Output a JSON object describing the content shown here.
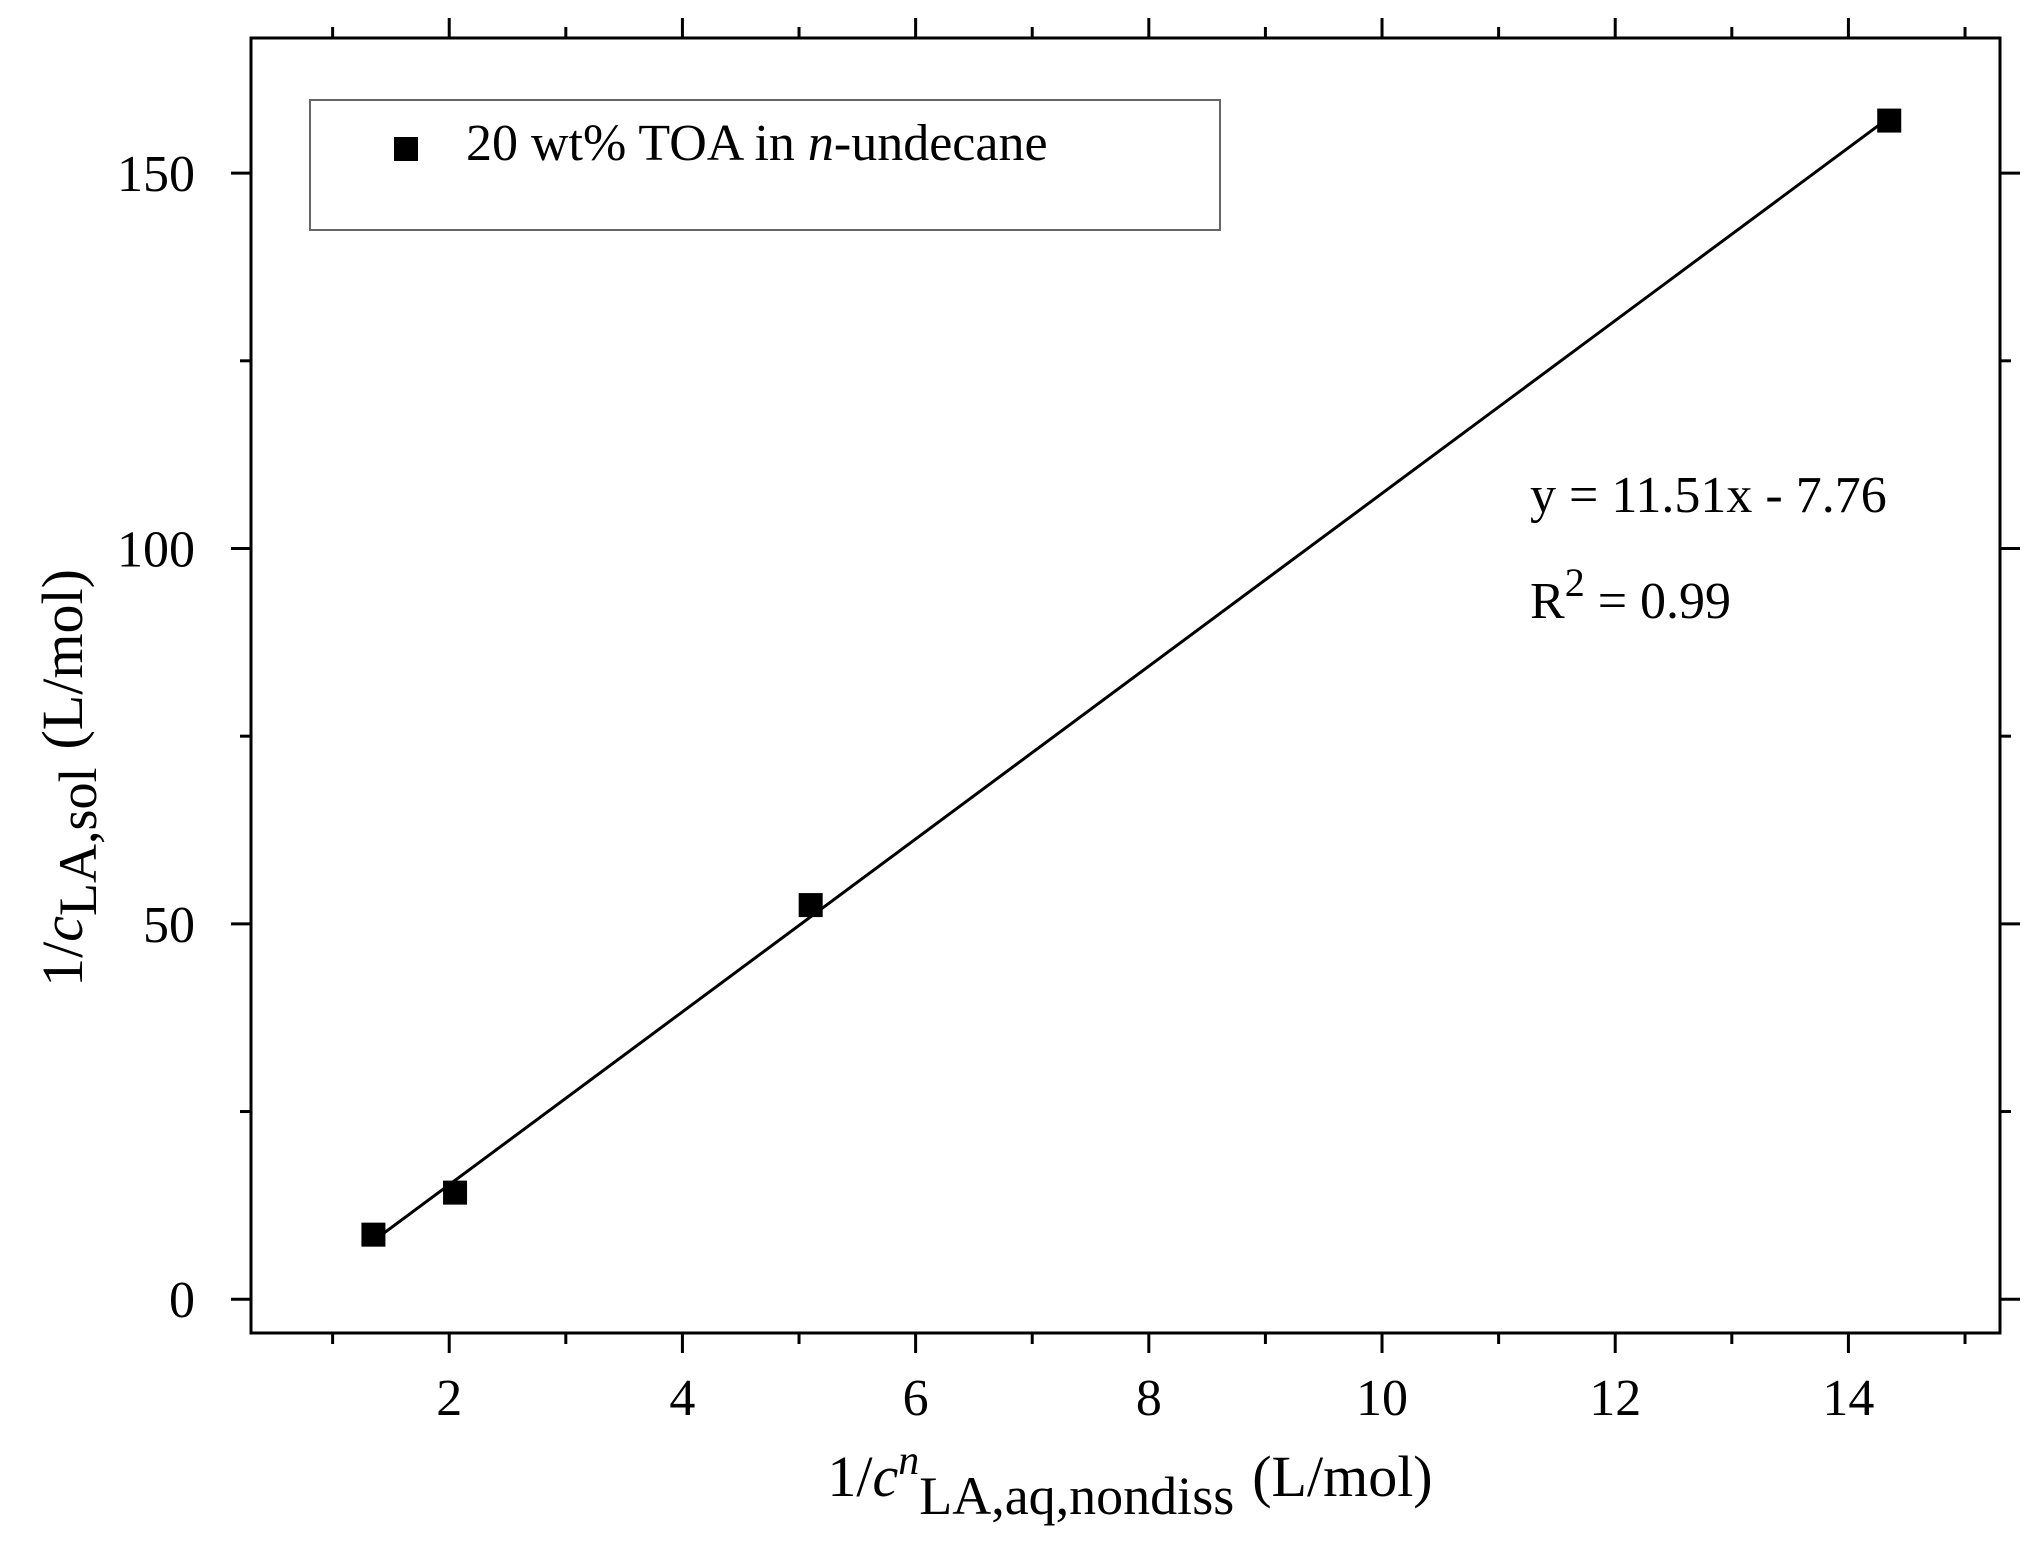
{
  "chart_data": {
    "type": "scatter",
    "series": [
      {
        "name": "20 wt% TOA in n-undecane",
        "x": [
          1.35,
          2.05,
          5.1,
          14.35
        ],
        "y": [
          8.6,
          14.2,
          52.5,
          157
        ]
      }
    ],
    "fit_line": {
      "equation": "y = 11.51x - 7.76",
      "r_squared": "0.99",
      "slope": 11.51,
      "intercept": -7.76,
      "x_range": [
        1.35,
        14.35
      ]
    },
    "xlim": [
      0.3,
      15.3
    ],
    "ylim": [
      -4.5,
      168
    ],
    "x_ticks": [
      2,
      4,
      6,
      8,
      10,
      12,
      14
    ],
    "x_minor_ticks": [
      1,
      3,
      5,
      7,
      9,
      11,
      13,
      15
    ],
    "y_ticks": [
      0,
      50,
      100,
      150
    ],
    "y_minor_ticks": [
      25,
      75,
      125
    ],
    "legend": {
      "placement": "top-left",
      "entry_prefix": "20 wt% TOA in ",
      "entry_italic": "n",
      "entry_suffix": "-undecane"
    },
    "xlabel": {
      "prefix": "1/",
      "var": "c",
      "superscript": "n",
      "subscript": "LA,aq,nondiss",
      "units": "(L/mol)"
    },
    "ylabel": {
      "prefix": "1/",
      "var": "c",
      "subscript": "LA,sol",
      "units": "(L/mol)"
    },
    "annotation": {
      "equation": "y = 11.51x - 7.76",
      "r2_prefix": "R",
      "r2_superscript": "2",
      "r2_suffix": " = 0.99"
    },
    "grid": false,
    "colors": {
      "marker": "#000000",
      "line": "#000000",
      "axes": "#000000",
      "background": "#ffffff"
    }
  }
}
